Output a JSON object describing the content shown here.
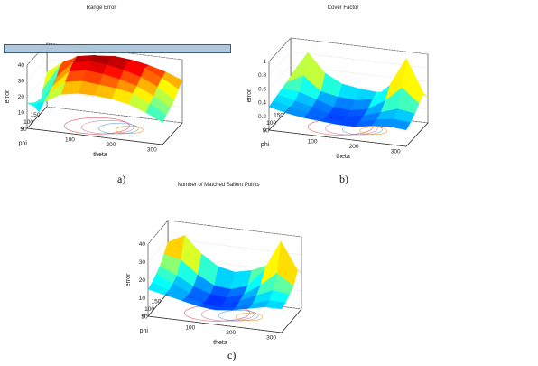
{
  "colors": {
    "axis": "#333333",
    "grid": "#cfcfcf",
    "overlay": "#a9c4d8"
  },
  "chart_data": [
    {
      "type": "surface3d",
      "title": "Range Error",
      "caption": "a)",
      "xlabel": "phi",
      "ylabel": "theta",
      "zlabel": "error",
      "phi_ticks": [
        "150",
        "100",
        "50"
      ],
      "theta_ticks": [
        "100",
        "200",
        "300"
      ],
      "z_ticks": [
        "0",
        "10",
        "20",
        "30",
        "40"
      ],
      "zlim": [
        0,
        40
      ],
      "colormap": "jet",
      "surface_rows": [
        [
          22,
          30,
          34,
          36,
          37,
          36,
          34,
          31,
          27
        ],
        [
          14,
          30,
          37,
          39,
          39,
          38,
          35,
          30,
          24
        ],
        [
          2,
          25,
          36,
          38,
          37,
          35,
          32,
          27,
          20
        ],
        [
          8,
          22,
          33,
          35,
          34,
          32,
          29,
          24,
          18
        ],
        [
          12,
          20,
          29,
          31,
          30,
          29,
          27,
          22,
          16
        ],
        [
          16,
          18,
          24,
          26,
          26,
          25,
          23,
          19,
          14
        ]
      ]
    },
    {
      "type": "surface3d",
      "title": "Cover Factor",
      "caption": "b)",
      "xlabel": "phi",
      "ylabel": "theta",
      "zlabel": "error",
      "phi_ticks": [
        "150",
        "100",
        "50"
      ],
      "theta_ticks": [
        "100",
        "200",
        "300"
      ],
      "z_ticks": [
        "0",
        "0.2",
        "0.4",
        "0.6",
        "0.8",
        "1"
      ],
      "zlim": [
        0,
        1
      ],
      "colormap": "jet",
      "surface_rows": [
        [
          0.45,
          0.82,
          0.55,
          0.42,
          0.38,
          0.36,
          0.4,
          0.45,
          0.38
        ],
        [
          0.42,
          0.55,
          0.35,
          0.3,
          0.28,
          0.32,
          0.55,
          0.98,
          0.5
        ],
        [
          0.4,
          0.38,
          0.3,
          0.22,
          0.2,
          0.25,
          0.4,
          0.62,
          0.42
        ],
        [
          0.38,
          0.32,
          0.26,
          0.2,
          0.18,
          0.22,
          0.3,
          0.38,
          0.34
        ],
        [
          0.36,
          0.3,
          0.24,
          0.2,
          0.18,
          0.2,
          0.26,
          0.3,
          0.28
        ],
        [
          0.34,
          0.28,
          0.24,
          0.22,
          0.2,
          0.2,
          0.24,
          0.26,
          0.24
        ]
      ]
    },
    {
      "type": "surface3d",
      "title": "Number of Matched Salient Points",
      "caption": "c)",
      "xlabel": "phi",
      "ylabel": "theta",
      "zlabel": "error",
      "phi_ticks": [
        "150",
        "100",
        "50"
      ],
      "theta_ticks": [
        "100",
        "200",
        "300"
      ],
      "z_ticks": [
        "0",
        "10",
        "20",
        "30",
        "40"
      ],
      "zlim": [
        0,
        40
      ],
      "colormap": "jet",
      "surface_rows": [
        [
          28,
          33,
          24,
          18,
          16,
          18,
          22,
          26,
          20
        ],
        [
          24,
          22,
          15,
          10,
          9,
          12,
          22,
          39,
          24
        ],
        [
          20,
          16,
          11,
          8,
          7,
          10,
          16,
          24,
          18
        ],
        [
          18,
          14,
          10,
          7,
          6,
          9,
          13,
          17,
          16
        ],
        [
          16,
          13,
          10,
          8,
          7,
          8,
          11,
          14,
          14
        ],
        [
          15,
          13,
          11,
          9,
          8,
          9,
          11,
          13,
          13
        ]
      ]
    }
  ]
}
